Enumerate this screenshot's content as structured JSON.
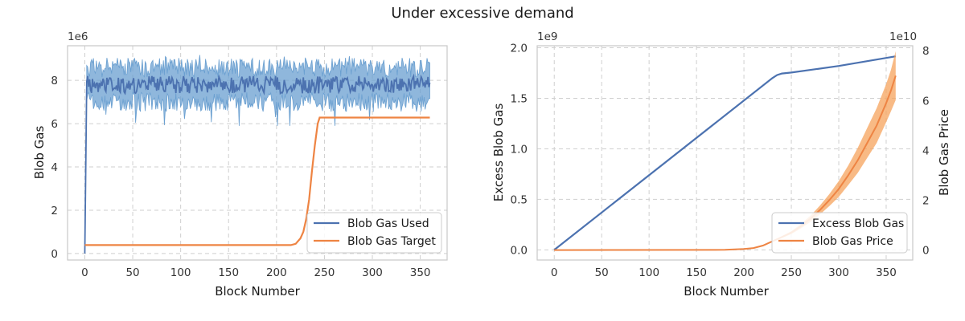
{
  "figure": {
    "title": "Under excessive demand"
  },
  "colors": {
    "blue": "#4c72b0",
    "blue_band": "#6a9fd0",
    "orange": "#ee8443",
    "orange_band": "#f5a35c"
  },
  "chart_data": [
    {
      "type": "line",
      "xlabel": "Block Number",
      "ylabel": "Blob Gas",
      "y_exponent": "1e6",
      "xlim": [
        -18,
        378
      ],
      "ylim": [
        -0.3,
        9.6
      ],
      "xticks": [
        "0",
        "50",
        "100",
        "150",
        "200",
        "250",
        "300",
        "350"
      ],
      "yticks": [
        "0",
        "2",
        "4",
        "6",
        "8"
      ],
      "grid": true,
      "legend_position": "lower right",
      "series": [
        {
          "name": "Blob Gas Used",
          "color": "#4c72b0",
          "x": [
            0,
            2,
            360
          ],
          "y": [
            0,
            7.8,
            7.8
          ],
          "band": {
            "low": 7.0,
            "high": 8.6,
            "min": 5.9,
            "max": 9.2
          }
        },
        {
          "name": "Blob Gas Target",
          "color": "#ee8443",
          "x": [
            0,
            215,
            220,
            225,
            228,
            231,
            234,
            237,
            240,
            243,
            245,
            360
          ],
          "y": [
            0.39,
            0.39,
            0.45,
            0.7,
            1.0,
            1.6,
            2.5,
            3.8,
            5.0,
            6.0,
            6.28,
            6.28
          ]
        }
      ]
    },
    {
      "type": "line",
      "xlabel": "Block Number",
      "ylabel": "Excess Blob Gas",
      "y_exponent": "1e9",
      "ylabel_right": "Blob Gas Price",
      "y_exponent_right": "1e10",
      "xlim": [
        -18,
        378
      ],
      "ylim": [
        -0.1,
        2.02
      ],
      "ylim_right": [
        -0.4,
        8.2
      ],
      "xticks": [
        "0",
        "50",
        "100",
        "150",
        "200",
        "250",
        "300",
        "350"
      ],
      "yticks": [
        "0.0",
        "0.5",
        "1.0",
        "1.5",
        "2.0"
      ],
      "yticks_right": [
        "0",
        "2",
        "4",
        "6",
        "8"
      ],
      "grid": true,
      "legend_position": "lower right",
      "series": [
        {
          "name": "Excess Blob Gas",
          "color": "#4c72b0",
          "axis": "left",
          "x": [
            0,
            230,
            235,
            240,
            245,
            250,
            300,
            360
          ],
          "y": [
            0,
            1.7,
            1.73,
            1.745,
            1.75,
            1.755,
            1.82,
            1.915
          ]
        },
        {
          "name": "Blob Gas Price",
          "color": "#ee8443",
          "axis": "right",
          "x": [
            0,
            180,
            200,
            210,
            220,
            230,
            240,
            250,
            260,
            270,
            280,
            290,
            300,
            310,
            320,
            330,
            340,
            350,
            355,
            360
          ],
          "y": [
            0,
            0.01,
            0.04,
            0.08,
            0.18,
            0.35,
            0.52,
            0.7,
            0.95,
            1.25,
            1.6,
            2.0,
            2.45,
            3.0,
            3.6,
            4.3,
            5.0,
            5.9,
            6.4,
            7.0
          ],
          "band_fraction": [
            0,
            0.005,
            0.02,
            0.03,
            0.05,
            0.06,
            0.07,
            0.08,
            0.09,
            0.1,
            0.11,
            0.12,
            0.13,
            0.13,
            0.14,
            0.14,
            0.14,
            0.13,
            0.13,
            0.14
          ]
        }
      ]
    }
  ]
}
